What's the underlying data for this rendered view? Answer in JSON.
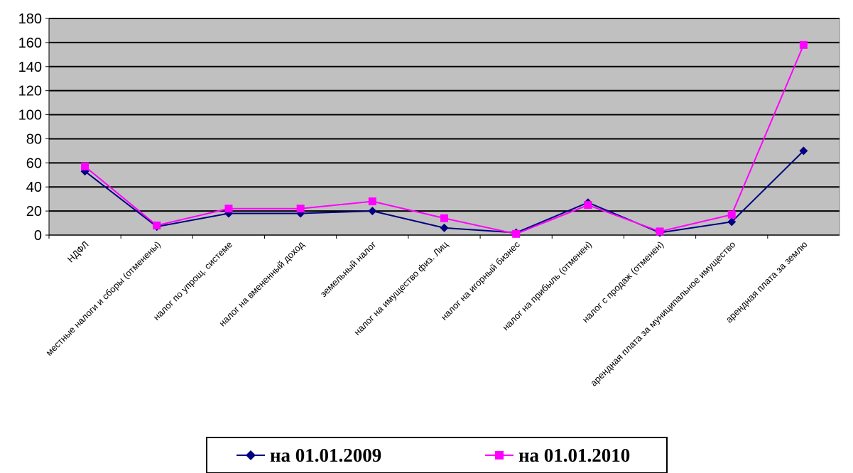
{
  "chart_data": {
    "type": "line",
    "categories": [
      "НДФЛ",
      "местные налоги и сборы (отменены)",
      "налог по упрощ. системе",
      "налог на вмененный доход",
      "земельный налог",
      "налог на имущество физ. Лиц",
      "налог на игорный бизнес",
      "налог на прибыль (отменен)",
      "налог с продаж (отменен)",
      "арендная плата за муниципальное имущество",
      "арендная плата за землю"
    ],
    "series": [
      {
        "name": "на 01.01.2009",
        "color": "#000080",
        "marker": "diamond",
        "values": [
          53,
          7,
          18,
          18,
          20,
          6,
          2,
          27,
          2,
          11,
          70
        ]
      },
      {
        "name": "на 01.01.2010",
        "color": "#ff00ff",
        "marker": "square",
        "values": [
          57,
          8,
          22,
          22,
          28,
          14,
          1,
          25,
          3,
          17,
          158
        ]
      }
    ],
    "ylim": [
      0,
      180
    ],
    "yticks": [
      0,
      20,
      40,
      60,
      80,
      100,
      120,
      140,
      160,
      180
    ],
    "grid": true,
    "plot_background": "#c0c0c0",
    "legend_position": "bottom"
  }
}
